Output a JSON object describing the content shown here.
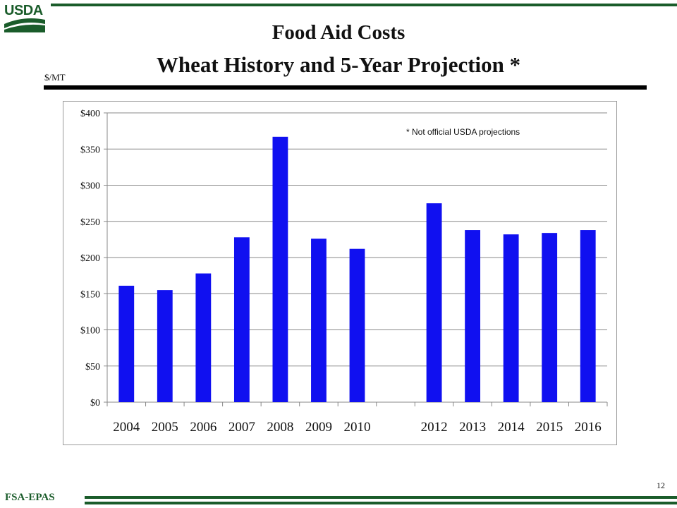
{
  "header": {
    "logo_text": "USDA",
    "title_line1": "Food Aid Costs",
    "title_line2": "Wheat History and 5-Year Projection  *",
    "unit_label": "$/MT"
  },
  "footer": {
    "org": "FSA-EPAS",
    "page_number": "12"
  },
  "colors": {
    "brand_green": "#1a5c2a",
    "bar": "#1010f0",
    "grid": "#888888"
  },
  "chart_data": {
    "type": "bar",
    "categories": [
      "2004",
      "2005",
      "2006",
      "2007",
      "2008",
      "2009",
      "2010",
      "",
      "2012",
      "2013",
      "2014",
      "2015",
      "2016"
    ],
    "values": [
      161,
      155,
      178,
      228,
      367,
      226,
      212,
      null,
      275,
      238,
      232,
      234,
      238
    ],
    "ylim": [
      0,
      400
    ],
    "yticks": [
      0,
      50,
      100,
      150,
      200,
      250,
      300,
      350,
      400
    ],
    "ytick_labels": [
      "$0",
      "$50",
      "$100",
      "$150",
      "$200",
      "$250",
      "$300",
      "$350",
      "$400"
    ],
    "annotation": "* Not official USDA projections",
    "grid": true,
    "legend": "none"
  }
}
